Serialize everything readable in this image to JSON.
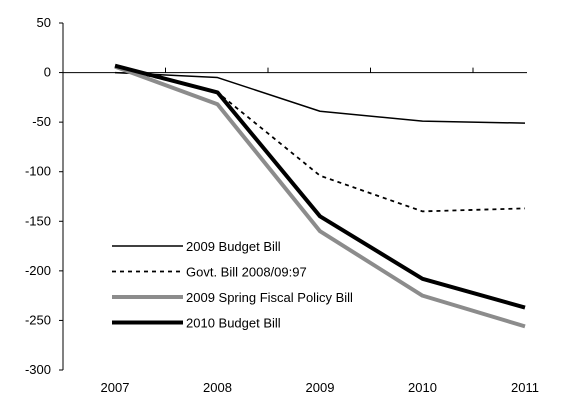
{
  "chart_data": {
    "type": "line",
    "title": "",
    "xlabel": "",
    "ylabel": "",
    "x": [
      "2007",
      "2008",
      "2009",
      "2010",
      "2011"
    ],
    "ylim": [
      -300,
      50
    ],
    "yticks": [
      50,
      0,
      -50,
      -100,
      -150,
      -200,
      -250,
      -300
    ],
    "grid": false,
    "legend_position": "bottom-left",
    "series": [
      {
        "name": "2009 Budget Bill",
        "values": [
          0,
          -5,
          -39,
          -49,
          -51
        ],
        "color": "#000000",
        "style": "solid-thin"
      },
      {
        "name": "Govt. Bill 2008/09:97",
        "values": [
          5,
          -20,
          -104,
          -140,
          -137
        ],
        "color": "#000000",
        "style": "dashed"
      },
      {
        "name": "2009 Spring Fiscal Policy Bill",
        "values": [
          6,
          -32,
          -160,
          -225,
          -256
        ],
        "color": "#8c8c8c",
        "style": "solid-thick"
      },
      {
        "name": "2010 Budget Bill",
        "values": [
          7,
          -20,
          -145,
          -208,
          -237
        ],
        "color": "#000000",
        "style": "solid-thick"
      }
    ]
  }
}
